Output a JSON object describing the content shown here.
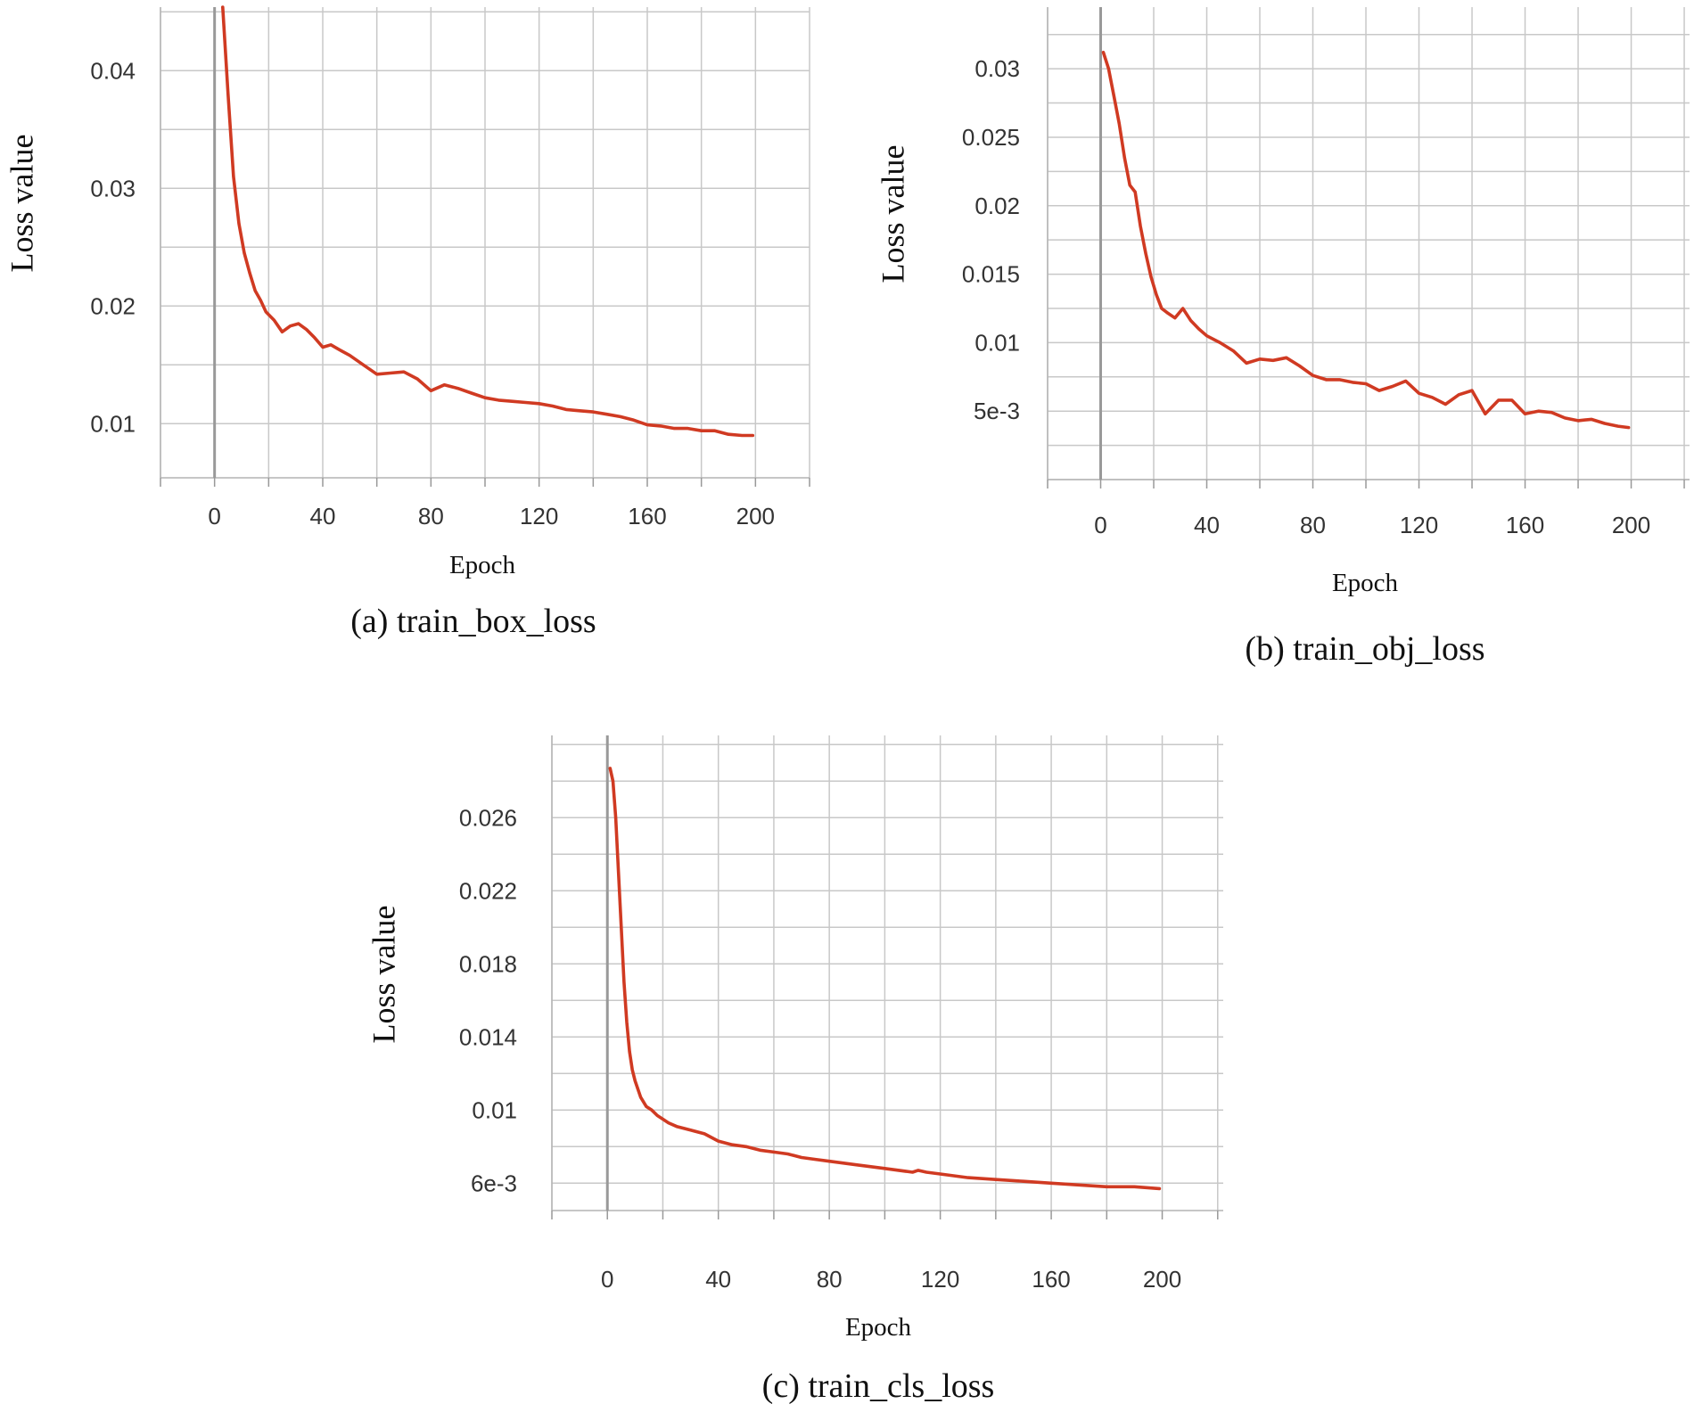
{
  "colors": {
    "series": "#d03a22",
    "grid": "#c8c8c8",
    "zero_line": "#999999"
  },
  "chart_data": [
    {
      "id": "a",
      "type": "line",
      "title": "(a) train_box_loss",
      "xlabel": "Epoch",
      "ylabel": "Loss value",
      "xlim": [
        -20,
        220
      ],
      "ylim": [
        0.0054,
        0.0454
      ],
      "xticks": [
        0,
        40,
        80,
        120,
        160,
        200
      ],
      "yticks": [
        0.01,
        0.02,
        0.03,
        0.04
      ],
      "ytick_labels": [
        "0.01",
        "0.02",
        "0.03",
        "0.04"
      ],
      "grid": true,
      "series": [
        {
          "name": "train_box_loss",
          "x": [
            3,
            5,
            7,
            9,
            11,
            13,
            15,
            17,
            19,
            22,
            25,
            28,
            31,
            34,
            37,
            40,
            43,
            46,
            50,
            55,
            60,
            65,
            70,
            75,
            80,
            85,
            90,
            95,
            100,
            105,
            110,
            115,
            120,
            125,
            130,
            135,
            140,
            145,
            150,
            155,
            160,
            165,
            170,
            175,
            180,
            185,
            190,
            195,
            199
          ],
          "y": [
            0.0454,
            0.038,
            0.031,
            0.027,
            0.0245,
            0.0228,
            0.0213,
            0.0205,
            0.0195,
            0.0188,
            0.0178,
            0.0183,
            0.0185,
            0.018,
            0.0173,
            0.0165,
            0.0167,
            0.0163,
            0.0158,
            0.015,
            0.0142,
            0.0143,
            0.0144,
            0.0138,
            0.0128,
            0.0133,
            0.013,
            0.0126,
            0.0122,
            0.012,
            0.0119,
            0.0118,
            0.0117,
            0.0115,
            0.0112,
            0.0111,
            0.011,
            0.0108,
            0.0106,
            0.0103,
            0.0099,
            0.0098,
            0.0096,
            0.0096,
            0.0094,
            0.0094,
            0.0091,
            0.009,
            0.009
          ]
        }
      ]
    },
    {
      "id": "b",
      "type": "line",
      "title": "(b) train_obj_loss",
      "xlabel": "Epoch",
      "ylabel": "Loss value",
      "xlim": [
        -20,
        222
      ],
      "ylim": [
        0,
        0.0345
      ],
      "xticks": [
        0,
        40,
        80,
        120,
        160,
        200
      ],
      "yticks": [
        0.005,
        0.01,
        0.015,
        0.02,
        0.025,
        0.03
      ],
      "ytick_labels": [
        "5e-3",
        "0.01",
        "0.015",
        "0.02",
        "0.025",
        "0.03"
      ],
      "grid": true,
      "series": [
        {
          "name": "train_obj_loss",
          "x": [
            1,
            3,
            5,
            7,
            9,
            11,
            13,
            15,
            17,
            19,
            21,
            23,
            25,
            28,
            31,
            34,
            37,
            40,
            45,
            50,
            55,
            60,
            65,
            70,
            75,
            80,
            85,
            90,
            95,
            100,
            105,
            110,
            115,
            120,
            125,
            130,
            135,
            140,
            145,
            150,
            155,
            160,
            165,
            170,
            175,
            180,
            185,
            190,
            195,
            199
          ],
          "y": [
            0.0312,
            0.03,
            0.028,
            0.026,
            0.0235,
            0.0215,
            0.021,
            0.0185,
            0.0165,
            0.0148,
            0.0135,
            0.0125,
            0.0122,
            0.0118,
            0.0125,
            0.0116,
            0.011,
            0.0105,
            0.01,
            0.0094,
            0.0085,
            0.0088,
            0.0087,
            0.0089,
            0.0083,
            0.0076,
            0.0073,
            0.0073,
            0.0071,
            0.007,
            0.0065,
            0.0068,
            0.0072,
            0.0063,
            0.006,
            0.0055,
            0.0062,
            0.0065,
            0.0048,
            0.0058,
            0.0058,
            0.0048,
            0.005,
            0.0049,
            0.0045,
            0.0043,
            0.0044,
            0.0041,
            0.0039,
            0.0038
          ]
        }
      ]
    },
    {
      "id": "c",
      "type": "line",
      "title": "(c) train_cls_loss",
      "xlabel": "Epoch",
      "ylabel": "Loss value",
      "xlim": [
        -20,
        222
      ],
      "ylim": [
        0.0045,
        0.0305
      ],
      "xticks": [
        0,
        40,
        80,
        120,
        160,
        200
      ],
      "yticks": [
        0.006,
        0.01,
        0.014,
        0.018,
        0.022,
        0.026
      ],
      "ytick_labels": [
        "6e-3",
        "0.01",
        "0.014",
        "0.018",
        "0.022",
        "0.026"
      ],
      "grid": true,
      "series": [
        {
          "name": "train_cls_loss",
          "x": [
            1,
            2,
            3,
            4,
            5,
            6,
            7,
            8,
            9,
            10,
            12,
            14,
            16,
            18,
            20,
            22,
            25,
            30,
            35,
            40,
            45,
            50,
            55,
            60,
            65,
            70,
            75,
            80,
            90,
            100,
            110,
            112,
            115,
            120,
            130,
            140,
            150,
            160,
            170,
            180,
            190,
            199
          ],
          "y": [
            0.0287,
            0.028,
            0.026,
            0.023,
            0.02,
            0.017,
            0.0148,
            0.0132,
            0.0122,
            0.0116,
            0.0107,
            0.0102,
            0.01,
            0.0097,
            0.0095,
            0.0093,
            0.0091,
            0.0089,
            0.0087,
            0.0083,
            0.0081,
            0.008,
            0.0078,
            0.0077,
            0.0076,
            0.0074,
            0.0073,
            0.0072,
            0.007,
            0.0068,
            0.0066,
            0.0067,
            0.0066,
            0.0065,
            0.0063,
            0.0062,
            0.0061,
            0.006,
            0.0059,
            0.0058,
            0.0058,
            0.0057
          ]
        }
      ]
    }
  ]
}
